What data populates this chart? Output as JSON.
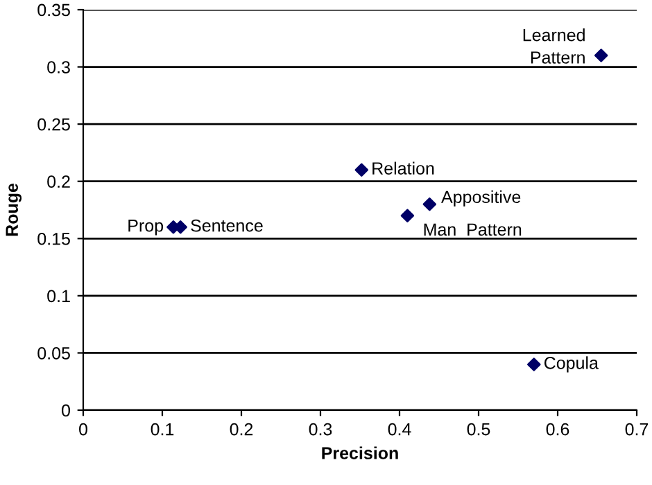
{
  "chart_data": {
    "type": "scatter",
    "xlabel": "Precision",
    "ylabel": "Rouge",
    "series": [
      {
        "color": "#000066",
        "x": [
          0.114,
          0.123,
          0.352,
          0.41,
          0.438,
          0.655,
          0.57
        ],
        "values": [
          0.16,
          0.16,
          0.21,
          0.17,
          0.18,
          0.31,
          0.04
        ]
      }
    ],
    "xlim": [
      0,
      0.7
    ],
    "xticks": [
      0,
      0.1,
      0.2,
      0.3,
      0.4,
      0.5,
      0.6,
      0.7
    ],
    "ylim": [
      0,
      0.35
    ],
    "yticks": [
      0,
      0.05,
      0.1,
      0.15,
      0.2,
      0.25,
      0.3,
      0.35
    ],
    "grid": "y",
    "marker": "diamond",
    "legend": false,
    "annotations": [
      {
        "text": "Prop",
        "x": 0.114,
        "y": 0.16
      },
      {
        "text": "Sentence",
        "x": 0.123,
        "y": 0.16
      },
      {
        "text": "Relation",
        "x": 0.352,
        "y": 0.21
      },
      {
        "text": "Man  Pattern",
        "x": 0.41,
        "y": 0.17
      },
      {
        "text": "Appositive",
        "x": 0.438,
        "y": 0.18
      },
      {
        "text": "Learned\nPattern",
        "x": 0.655,
        "y": 0.31
      },
      {
        "text": "Copula",
        "x": 0.57,
        "y": 0.04
      }
    ]
  }
}
